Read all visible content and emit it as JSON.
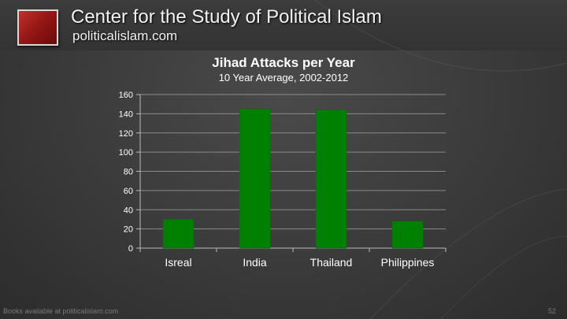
{
  "header": {
    "title": "Center for the Study of Political Islam",
    "website": "politicalislam.com"
  },
  "footer": {
    "note": "Books available at politicalislam.com",
    "page_number": "52"
  },
  "colors": {
    "bar": "#008000",
    "logo": "#a01c1a",
    "text": "#ffffff"
  },
  "chart_data": {
    "type": "bar",
    "title": "Jihad Attacks per Year",
    "subtitle": "10 Year Average, 2002-2012",
    "categories": [
      "Isreal",
      "India",
      "Thailand",
      "Philippines"
    ],
    "values": [
      30,
      145,
      144,
      28
    ],
    "xlabel": "",
    "ylabel": "",
    "ylim": [
      0,
      160
    ],
    "yticks": [
      0,
      20,
      40,
      60,
      80,
      100,
      120,
      140,
      160
    ],
    "grid": true,
    "legend": "none"
  }
}
